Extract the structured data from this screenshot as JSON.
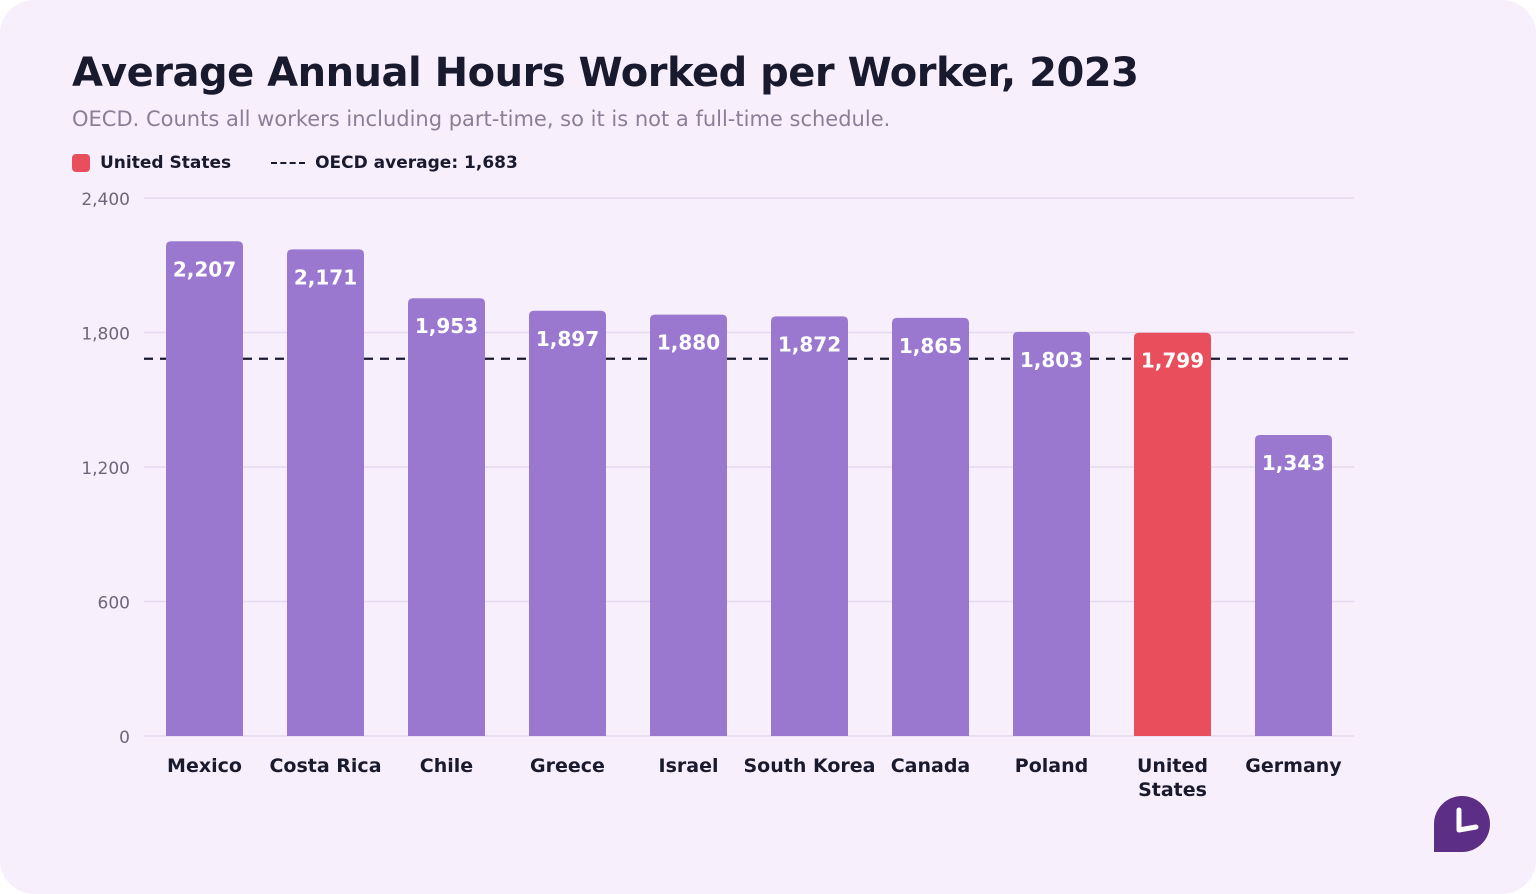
{
  "title": "Average Annual Hours Worked per Worker, 2023",
  "subtitle": "OECD. Counts all workers including part-time, so it is not a full-time schedule.",
  "legend": {
    "highlight_label": "United States",
    "reference_label": "OECD average: 1,683"
  },
  "colors": {
    "bar": "#9b78cf",
    "highlight": "#e84e5b",
    "grid": "#e6d9f0",
    "text": "#1a1a2e",
    "axis_text": "#6f6679",
    "background": "#f7effc",
    "logo": "#5c2e86"
  },
  "chart_data": {
    "type": "bar",
    "categories": [
      "Mexico",
      "Costa Rica",
      "Chile",
      "Greece",
      "Israel",
      "South Korea",
      "Canada",
      "Poland",
      "United States",
      "Germany"
    ],
    "category_lines": [
      [
        "Mexico"
      ],
      [
        "Costa Rica"
      ],
      [
        "Chile"
      ],
      [
        "Greece"
      ],
      [
        "Israel"
      ],
      [
        "South Korea"
      ],
      [
        "Canada"
      ],
      [
        "Poland"
      ],
      [
        "United",
        "States"
      ],
      [
        "Germany"
      ]
    ],
    "values": [
      2207,
      2171,
      1953,
      1897,
      1880,
      1872,
      1865,
      1803,
      1799,
      1343
    ],
    "value_labels": [
      "2,207",
      "2,171",
      "1,953",
      "1,897",
      "1,880",
      "1,872",
      "1,865",
      "1,803",
      "1,799",
      "1,343"
    ],
    "highlight": "United States",
    "reference_line": {
      "value": 1683,
      "style": "dashed"
    },
    "ylim": [
      0,
      2400
    ],
    "yticks": [
      0,
      600,
      1200,
      1800,
      2400
    ],
    "ytick_labels": [
      "0",
      "600",
      "1,200",
      "1,800",
      "2,400"
    ],
    "grid": true,
    "legend_position": "top-left"
  }
}
